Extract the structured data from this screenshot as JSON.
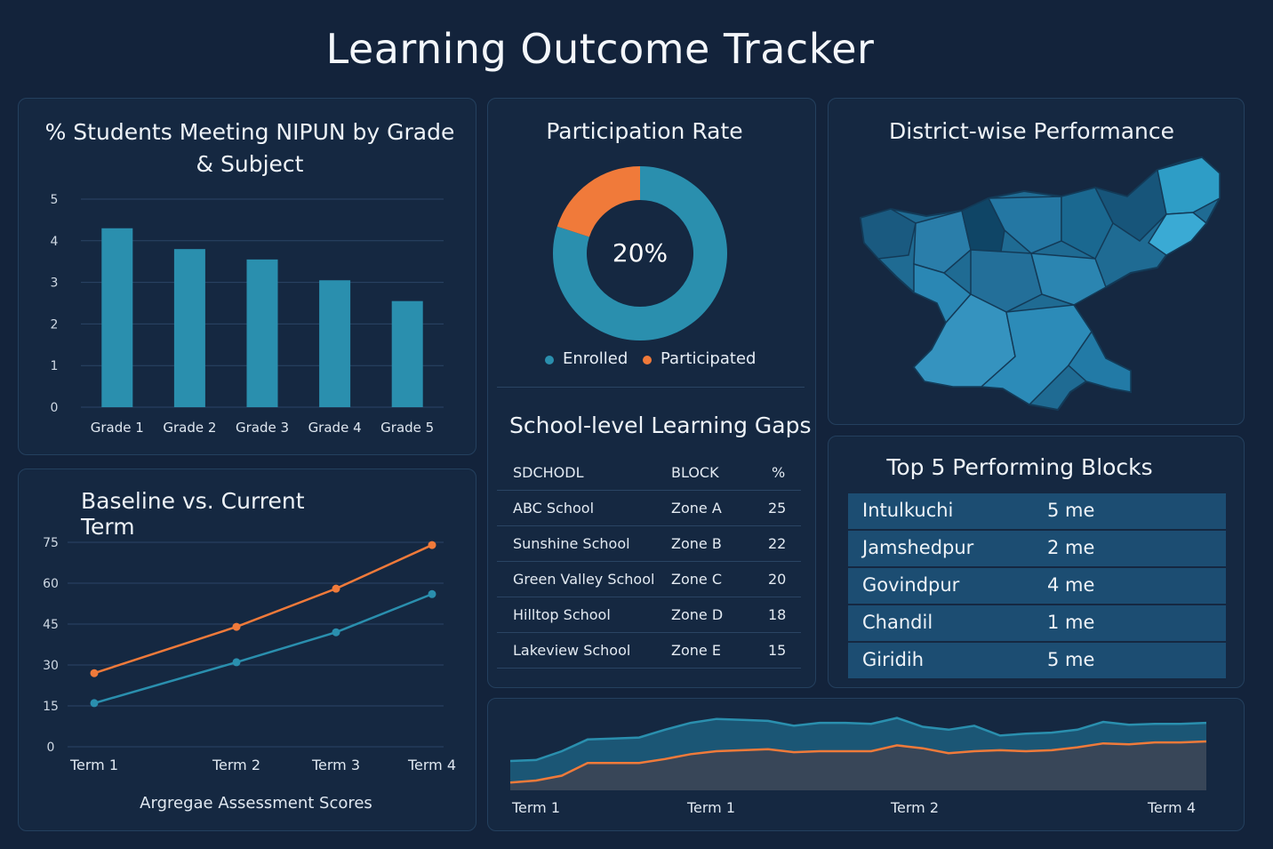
{
  "page_title": "Learning Outcome Tracker",
  "colors": {
    "background": "#13233b",
    "primary": "#2a8fae",
    "accent": "#f07a3a",
    "table_row": "#1c4d72"
  },
  "bar_panel": {
    "title": "% Students Meeting NIPUN by Grade & Subject"
  },
  "line_panel": {
    "title": "Baseline vs. Current  Term",
    "footer": "Argregae Assessment Scores"
  },
  "donut_panel": {
    "title": "Participation Rate",
    "center_label": "20%",
    "legend": [
      "Enrolled",
      "Participated"
    ]
  },
  "map_panel": {
    "title": "District-wise Performance"
  },
  "gaps_table": {
    "title": "School-level Learning Gaps",
    "headers": [
      "SDCHODL",
      "BLOCK",
      "%"
    ],
    "rows": [
      [
        "ABC School",
        "Zone A",
        "25"
      ],
      [
        "Sunshine School",
        "Zone B",
        "22"
      ],
      [
        "Green Valley School",
        "Zone C",
        "20"
      ],
      [
        "Hilltop School",
        "Zone D",
        "18"
      ],
      [
        "Lakeview School",
        "Zone E",
        "15"
      ]
    ]
  },
  "blocks_table": {
    "title": "Top 5 Performing Blocks",
    "rows": [
      [
        "Intulkuchi",
        "5 me"
      ],
      [
        "Jamshedpur",
        "2 me"
      ],
      [
        "Govindpur",
        "4 me"
      ],
      [
        "Chandil",
        "1 me"
      ],
      [
        "Giridih",
        "5 me"
      ]
    ]
  },
  "chart_data": [
    {
      "type": "bar",
      "title": "% Students Meeting NIPUN by Grade & Subject",
      "categories": [
        "Grade 1",
        "Grade 2",
        "Grade 3",
        "Grade 4",
        "Grade 5"
      ],
      "values": [
        4.3,
        3.8,
        3.55,
        3.05,
        2.55
      ],
      "ylim": [
        0,
        5
      ],
      "yticks": [
        "0",
        "1",
        "2",
        "3",
        "4",
        "5"
      ],
      "color": "#2a8fae",
      "grid": true
    },
    {
      "type": "line",
      "title": "Baseline vs. Current  Term",
      "x": [
        "Term 1",
        "Term 2",
        "Term 3",
        "Term 4"
      ],
      "ylim": [
        0,
        75
      ],
      "yticks": [
        "0",
        "15",
        "30",
        "45",
        "60",
        "75"
      ],
      "xlabel": "Argregae Assessment Scores",
      "series": [
        {
          "color": "#f07a3a",
          "values": [
            27,
            44,
            58,
            74
          ]
        },
        {
          "color": "#2a8fae",
          "values": [
            16,
            31,
            42,
            56
          ]
        }
      ],
      "grid": true
    },
    {
      "type": "pie",
      "title": "Participation Rate",
      "labels": [
        "Enrolled",
        "Participated"
      ],
      "values": [
        80,
        20
      ],
      "colors": [
        "#2a8fae",
        "#f07a3a"
      ],
      "center_label": "20%"
    },
    {
      "type": "area",
      "x_tick_labels": [
        "Term 1",
        "Term 1",
        "Term 2",
        "Term 4"
      ],
      "series": [
        {
          "color": "#2a8fae",
          "values": [
            30,
            31,
            40,
            52,
            53,
            54,
            62,
            69,
            73,
            72,
            71,
            66,
            69,
            69,
            68,
            74,
            65,
            62,
            66,
            56,
            58,
            59,
            62,
            70,
            67,
            68,
            68,
            69
          ]
        },
        {
          "color": "#f07a3a",
          "values": [
            8,
            10,
            15,
            28,
            28,
            28,
            32,
            37,
            40,
            41,
            42,
            39,
            40,
            40,
            40,
            46,
            43,
            38,
            40,
            41,
            40,
            41,
            44,
            48,
            47,
            49,
            49,
            50
          ]
        }
      ]
    }
  ]
}
